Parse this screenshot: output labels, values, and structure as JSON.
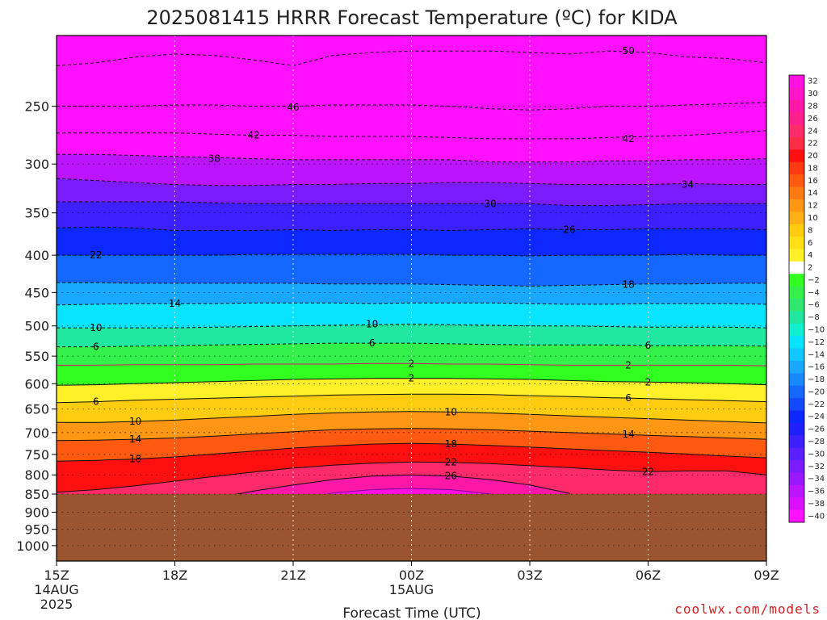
{
  "title": "2025081415 HRRR Forecast Temperature (ºC) for KIDA",
  "credit": "coolwx.com/models",
  "chart_data": {
    "type": "heatmap",
    "title": "2025081415 HRRR Forecast Temperature (ºC) for KIDA",
    "xlabel": "Forecast Time (UTC)",
    "ylabel": "",
    "x_hours": [
      0,
      18
    ],
    "x_ticks": [
      {
        "hour": 0,
        "label": "15Z",
        "sub": [
          "14AUG",
          "2025"
        ]
      },
      {
        "hour": 3,
        "label": "18Z",
        "sub": []
      },
      {
        "hour": 6,
        "label": "21Z",
        "sub": []
      },
      {
        "hour": 9,
        "label": "00Z",
        "sub": [
          "15AUG"
        ]
      },
      {
        "hour": 12,
        "label": "03Z",
        "sub": []
      },
      {
        "hour": 15,
        "label": "06Z",
        "sub": []
      },
      {
        "hour": 18,
        "label": "09Z",
        "sub": []
      }
    ],
    "y_range_hpa": [
      200,
      1050
    ],
    "y_ticks": [
      250,
      300,
      350,
      400,
      450,
      500,
      550,
      600,
      650,
      700,
      750,
      800,
      850,
      900,
      950,
      1000
    ],
    "underground_below_hpa": 850,
    "underground_color": "#9a5530",
    "colorbar": {
      "levels": [
        32,
        30,
        28,
        26,
        24,
        22,
        20,
        18,
        16,
        14,
        12,
        10,
        8,
        6,
        4,
        2,
        -2,
        -4,
        -6,
        -8,
        -10,
        -12,
        -14,
        -16,
        -18,
        -20,
        -22,
        -24,
        -26,
        -28,
        -30,
        -32,
        -34,
        -36,
        -38,
        -40
      ],
      "colors": [
        "#ff10e0",
        "#ff14c8",
        "#ff18a8",
        "#ff1f8c",
        "#ff2a6a",
        "#ff2c45",
        "#ff1010",
        "#ff3a12",
        "#ff5a10",
        "#ff7a10",
        "#ff9614",
        "#ffb014",
        "#ffcc10",
        "#ffe014",
        "#fff028",
        "#ffffff",
        "#30ff20",
        "#34f04a",
        "#30e870",
        "#20e8a0",
        "#10f0d0",
        "#08e4ff",
        "#10c8ff",
        "#18a8ff",
        "#1888ff",
        "#1468ff",
        "#1448ff",
        "#0c28ff",
        "#2020ff",
        "#3c20ff",
        "#5a20ff",
        "#7a1cff",
        "#9a18ff",
        "#bc14ff",
        "#dc10ff",
        "#ff10ff"
      ]
    },
    "series": [
      {
        "value": -50,
        "p": [
          220,
          218,
          214,
          212,
          213,
          216,
          220,
          213,
          211,
          210,
          210,
          210,
          211,
          212,
          210,
          211,
          214,
          215,
          218
        ]
      },
      {
        "value": -46,
        "p": [
          250,
          250,
          250,
          249,
          249,
          250,
          250,
          249,
          249,
          249,
          250,
          252,
          253,
          252,
          250,
          250,
          249,
          248,
          247
        ]
      },
      {
        "value": -42,
        "p": [
          272,
          272,
          272,
          272,
          273,
          274,
          274,
          275,
          275,
          275,
          276,
          277,
          277,
          277,
          276,
          275,
          274,
          272,
          270
        ]
      },
      {
        "value": -38,
        "p": [
          291,
          291,
          292,
          293,
          294,
          295,
          296,
          296,
          296,
          296,
          296,
          298,
          298,
          298,
          297,
          297,
          296,
          296,
          295
        ]
      },
      {
        "value": -34,
        "p": [
          314,
          316,
          318,
          320,
          321,
          321,
          320,
          320,
          319,
          319,
          318,
          318,
          319,
          320,
          320,
          320,
          319,
          320,
          320
        ]
      },
      {
        "value": -30,
        "p": [
          338,
          338,
          338,
          338,
          339,
          340,
          340,
          340,
          340,
          340,
          340,
          340,
          340,
          342,
          342,
          341,
          340,
          340,
          340
        ]
      },
      {
        "value": -26,
        "p": [
          367,
          366,
          367,
          370,
          370,
          370,
          369,
          370,
          369,
          369,
          370,
          369,
          368,
          369,
          369,
          368,
          368,
          368,
          369
        ]
      },
      {
        "value": -22,
        "p": [
          400,
          400,
          400,
          400,
          400,
          399,
          399,
          399,
          399,
          399,
          400,
          400,
          401,
          400,
          400,
          400,
          399,
          400,
          400
        ]
      },
      {
        "value": -18,
        "p": [
          436,
          436,
          437,
          437,
          437,
          437,
          437,
          438,
          438,
          438,
          439,
          440,
          441,
          440,
          439,
          438,
          438,
          437,
          437
        ]
      },
      {
        "value": -14,
        "p": [
          468,
          467,
          466,
          466,
          466,
          465,
          465,
          465,
          466,
          465,
          465,
          465,
          466,
          467,
          467,
          466,
          466,
          466,
          467
        ]
      },
      {
        "value": -10,
        "p": [
          503,
          503,
          503,
          503,
          502,
          501,
          500,
          499,
          498,
          497,
          498,
          499,
          500,
          500,
          501,
          502,
          502,
          502,
          503
        ]
      },
      {
        "value": -6,
        "p": [
          534,
          534,
          533,
          532,
          531,
          530,
          529,
          528,
          528,
          528,
          529,
          530,
          531,
          531,
          531,
          532,
          532,
          532,
          533
        ]
      },
      {
        "value": -2,
        "p": [
          566,
          566,
          565,
          565,
          565,
          564,
          564,
          564,
          563,
          563,
          564,
          564,
          565,
          566,
          566,
          566,
          566,
          566,
          567
        ]
      },
      {
        "value": 2,
        "p": [
          603,
          602,
          600,
          598,
          596,
          594,
          592,
          591,
          590,
          590,
          590,
          591,
          592,
          594,
          596,
          597,
          598,
          600,
          602
        ]
      },
      {
        "value": 6,
        "p": [
          637,
          635,
          632,
          630,
          628,
          626,
          624,
          622,
          621,
          620,
          620,
          621,
          623,
          625,
          627,
          629,
          631,
          633,
          635
        ]
      },
      {
        "value": 10,
        "p": [
          678,
          678,
          676,
          673,
          669,
          665,
          661,
          658,
          656,
          655,
          656,
          658,
          661,
          664,
          667,
          670,
          673,
          676,
          679
        ]
      },
      {
        "value": 14,
        "p": [
          718,
          717,
          715,
          712,
          708,
          703,
          698,
          694,
          692,
          691,
          692,
          694,
          697,
          700,
          703,
          706,
          709,
          712,
          715
        ]
      },
      {
        "value": 18,
        "p": [
          766,
          764,
          761,
          756,
          749,
          742,
          735,
          730,
          726,
          724,
          726,
          729,
          733,
          737,
          741,
          745,
          749,
          754,
          758
        ]
      },
      {
        "value": 22,
        "p": [
          845,
          838,
          828,
          816,
          804,
          793,
          783,
          776,
          771,
          768,
          769,
          772,
          777,
          782,
          788,
          792,
          790,
          790,
          800
        ]
      },
      {
        "value": 26,
        "p": [
          1050,
          1050,
          1050,
          890,
          862,
          842,
          826,
          812,
          803,
          800,
          803,
          812,
          826,
          848,
          1050,
          1050,
          1050,
          1050,
          1050
        ]
      },
      {
        "value": 30,
        "p": [
          1050,
          1050,
          1050,
          1050,
          1050,
          1050,
          870,
          847,
          838,
          835,
          838,
          850,
          880,
          1050,
          1050,
          1050,
          1050,
          1050,
          1050
        ]
      }
    ],
    "contour_labels": [
      {
        "text": "50",
        "h": 14.5,
        "p": 210
      },
      {
        "text": "46",
        "h": 6.0,
        "p": 251
      },
      {
        "text": "42",
        "h": 5.0,
        "p": 274
      },
      {
        "text": "42",
        "h": 14.5,
        "p": 277
      },
      {
        "text": "38",
        "h": 4.0,
        "p": 295
      },
      {
        "text": "34",
        "h": 16.0,
        "p": 320
      },
      {
        "text": "30",
        "h": 11.0,
        "p": 340
      },
      {
        "text": "26",
        "h": 13.0,
        "p": 369
      },
      {
        "text": "22",
        "h": 1.0,
        "p": 400
      },
      {
        "text": "18",
        "h": 14.5,
        "p": 439
      },
      {
        "text": "14",
        "h": 3.0,
        "p": 466
      },
      {
        "text": "10",
        "h": 1.0,
        "p": 503
      },
      {
        "text": "10",
        "h": 8.0,
        "p": 497
      },
      {
        "text": "6",
        "h": 1.0,
        "p": 534
      },
      {
        "text": "6",
        "h": 8.0,
        "p": 528
      },
      {
        "text": "6",
        "h": 15.0,
        "p": 532
      },
      {
        "text": "2",
        "h": 9.0,
        "p": 563
      },
      {
        "text": "2",
        "h": 14.5,
        "p": 566
      },
      {
        "text": "2",
        "h": 9.0,
        "p": 590
      },
      {
        "text": "2",
        "h": 15.0,
        "p": 597
      },
      {
        "text": "6",
        "h": 1.0,
        "p": 635
      },
      {
        "text": "6",
        "h": 14.5,
        "p": 628
      },
      {
        "text": "10",
        "h": 2.0,
        "p": 676
      },
      {
        "text": "10",
        "h": 10.0,
        "p": 656
      },
      {
        "text": "14",
        "h": 2.0,
        "p": 715
      },
      {
        "text": "14",
        "h": 14.5,
        "p": 704
      },
      {
        "text": "18",
        "h": 2.0,
        "p": 761
      },
      {
        "text": "18",
        "h": 10.0,
        "p": 726
      },
      {
        "text": "22",
        "h": 10.0,
        "p": 769
      },
      {
        "text": "22",
        "h": 15.0,
        "p": 792
      },
      {
        "text": "26",
        "h": 10.0,
        "p": 803
      }
    ]
  }
}
